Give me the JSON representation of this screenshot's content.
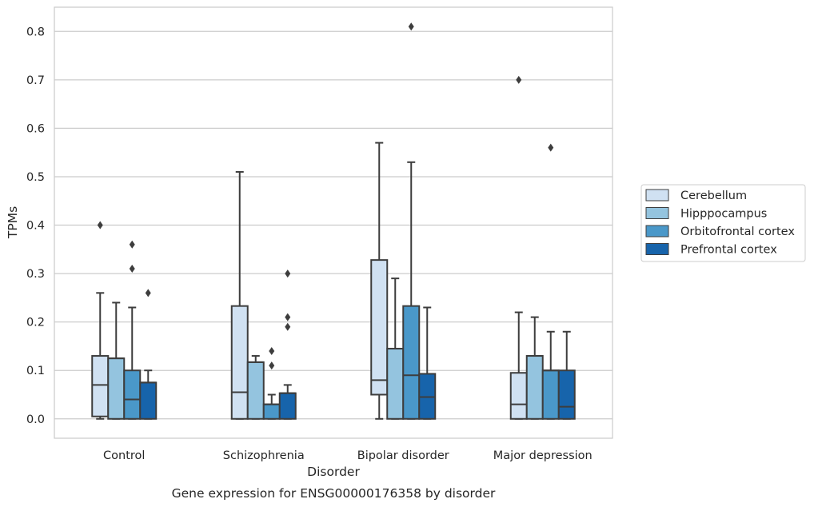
{
  "chart_data": {
    "type": "box",
    "title": "",
    "caption": "Gene expression for ENSG00000176358 by disorder",
    "xlabel": "Disorder",
    "ylabel": "TPMs",
    "ylim": [
      -0.04,
      0.85
    ],
    "yticks": [
      "0.0",
      "0.1",
      "0.2",
      "0.3",
      "0.4",
      "0.5",
      "0.6",
      "0.7",
      "0.8"
    ],
    "grid": "horizontal",
    "legend_position": "right",
    "categories": [
      "Control",
      "Schizophrenia",
      "Bipolar disorder",
      "Major depression"
    ],
    "series": [
      {
        "name": "Cerebellum",
        "color": "#d0e1f2",
        "boxes": [
          {
            "min": 0.0,
            "q1": 0.005,
            "median": 0.07,
            "q3": 0.13,
            "max": 0.26,
            "outliers": [
              0.4
            ]
          },
          {
            "min": 0.0,
            "q1": 0.0,
            "median": 0.055,
            "q3": 0.233,
            "max": 0.51,
            "outliers": []
          },
          {
            "min": 0.0,
            "q1": 0.05,
            "median": 0.08,
            "q3": 0.328,
            "max": 0.57,
            "outliers": []
          },
          {
            "min": 0.0,
            "q1": 0.0,
            "median": 0.03,
            "q3": 0.095,
            "max": 0.22,
            "outliers": [
              0.7
            ]
          }
        ]
      },
      {
        "name": "Hipppocampus",
        "color": "#94c4df",
        "boxes": [
          {
            "min": 0.0,
            "q1": 0.0,
            "median": 0.125,
            "q3": 0.125,
            "max": 0.24,
            "outliers": []
          },
          {
            "min": 0.0,
            "q1": 0.0,
            "median": 0.117,
            "q3": 0.117,
            "max": 0.13,
            "outliers": []
          },
          {
            "min": 0.0,
            "q1": 0.0,
            "median": 0.145,
            "q3": 0.145,
            "max": 0.29,
            "outliers": []
          },
          {
            "min": 0.0,
            "q1": 0.0,
            "median": 0.13,
            "q3": 0.13,
            "max": 0.21,
            "outliers": []
          }
        ]
      },
      {
        "name": "Orbitofrontal cortex",
        "color": "#4a98c9",
        "boxes": [
          {
            "min": 0.0,
            "q1": 0.0,
            "median": 0.04,
            "q3": 0.1,
            "max": 0.23,
            "outliers": [
              0.31,
              0.36
            ]
          },
          {
            "min": 0.0,
            "q1": 0.0,
            "median": 0.03,
            "q3": 0.03,
            "max": 0.05,
            "outliers": [
              0.11,
              0.14
            ]
          },
          {
            "min": 0.0,
            "q1": 0.0,
            "median": 0.09,
            "q3": 0.233,
            "max": 0.53,
            "outliers": [
              0.81
            ]
          },
          {
            "min": 0.0,
            "q1": 0.0,
            "median": 0.1,
            "q3": 0.1,
            "max": 0.18,
            "outliers": [
              0.56
            ]
          }
        ]
      },
      {
        "name": "Prefrontal cortex",
        "color": "#1764ab",
        "boxes": [
          {
            "min": 0.0,
            "q1": 0.0,
            "median": 0.075,
            "q3": 0.075,
            "max": 0.1,
            "outliers": [
              0.26
            ]
          },
          {
            "min": 0.0,
            "q1": 0.0,
            "median": 0.053,
            "q3": 0.053,
            "max": 0.07,
            "outliers": [
              0.19,
              0.21,
              0.3
            ]
          },
          {
            "min": 0.0,
            "q1": 0.0,
            "median": 0.045,
            "q3": 0.093,
            "max": 0.23,
            "outliers": []
          },
          {
            "min": 0.0,
            "q1": 0.0,
            "median": 0.025,
            "q3": 0.1,
            "max": 0.18,
            "outliers": []
          }
        ]
      }
    ]
  }
}
